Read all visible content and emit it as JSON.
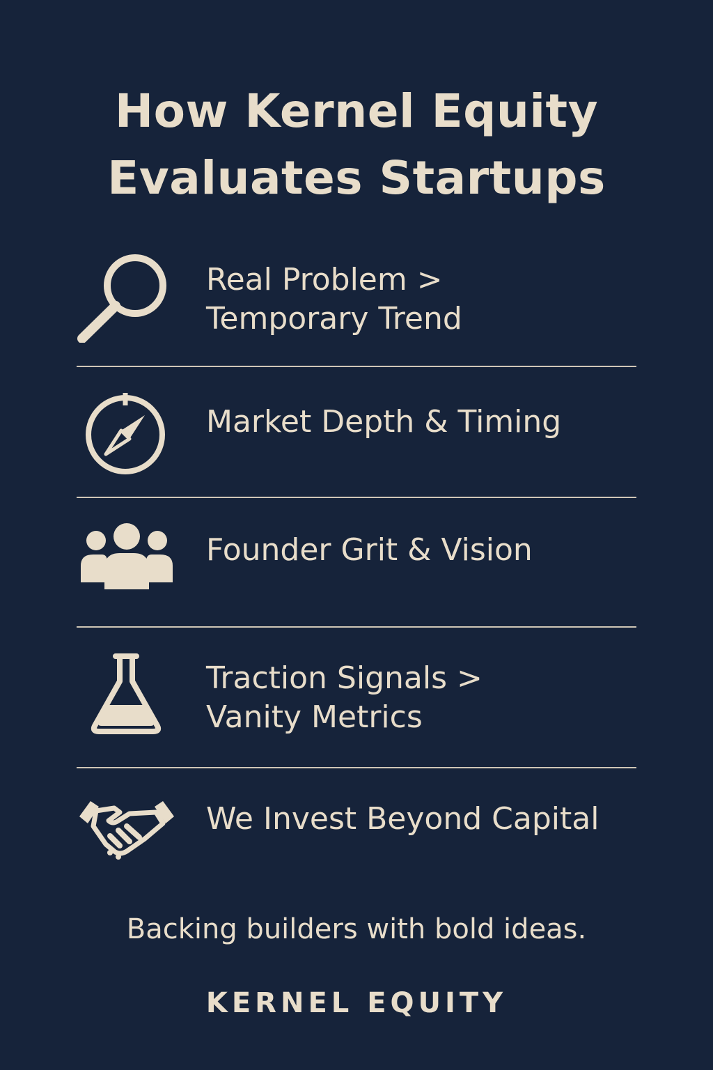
{
  "title": {
    "line1": "How Kernel Equity",
    "line2": "Evaluates Startups"
  },
  "criteria": [
    {
      "icon": "magnifying-glass-icon",
      "line1": "Real Problem >",
      "line2": "Temporary  Trend"
    },
    {
      "icon": "compass-icon",
      "line1": "Market Depth & Timing"
    },
    {
      "icon": "people-group-icon",
      "line1": "Founder Grit & Vision"
    },
    {
      "icon": "flask-icon",
      "line1": "Traction Signals >",
      "line2": "Vanity Metrics"
    },
    {
      "icon": "handshake-icon",
      "line1": "We Invest Beyond Capital"
    }
  ],
  "tagline": "Backing builders with bold ideas.",
  "brand": "KERNEL EQUITY",
  "colors": {
    "background": "#16233a",
    "foreground": "#e8ddca"
  }
}
